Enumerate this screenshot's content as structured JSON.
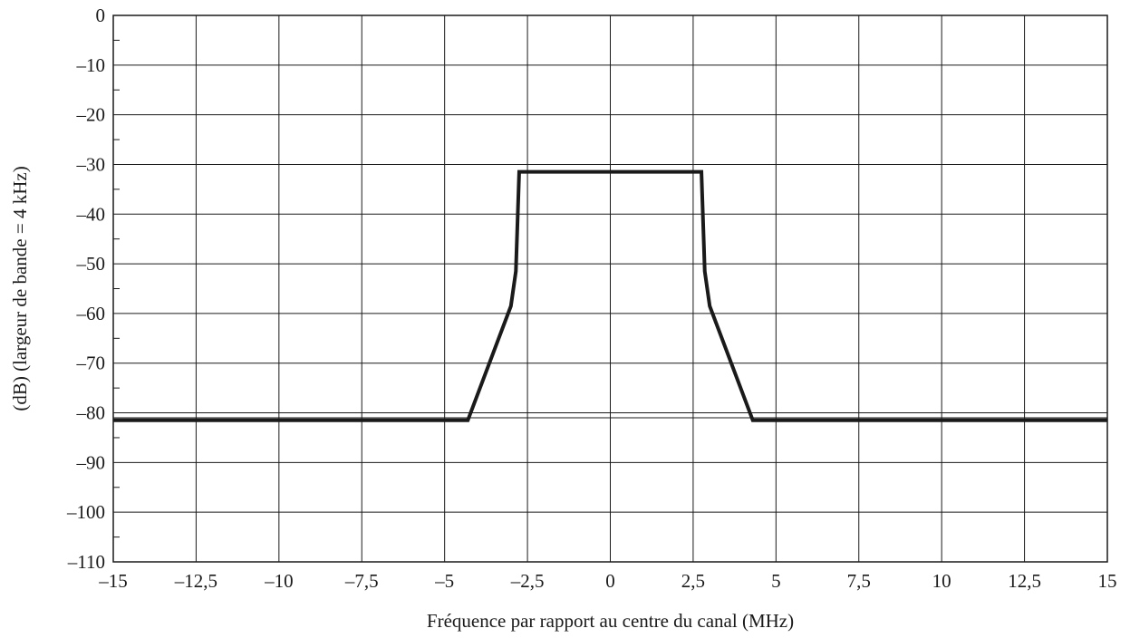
{
  "chart_data": {
    "type": "line",
    "title": "",
    "xlabel": "Fréquence par rapport au centre du canal  (MHz)",
    "ylabel": "(dB) (largeur de bande = 4 kHz)",
    "xlim": [
      -15,
      15
    ],
    "ylim": [
      -110,
      0
    ],
    "grid": true,
    "x_ticks": [
      -15,
      -12.5,
      -10,
      -7.5,
      -5,
      -2.5,
      0,
      2.5,
      5,
      7.5,
      10,
      12.5,
      15
    ],
    "x_tick_labels": [
      "–15",
      "–12,5",
      "–10",
      "–7,5",
      "–5",
      "–2,5",
      "0",
      "2,5",
      "5",
      "7,5",
      "10",
      "12,5",
      "15"
    ],
    "y_ticks": [
      0,
      -10,
      -20,
      -30,
      -40,
      -50,
      -60,
      -70,
      -80,
      -90,
      -100,
      -110
    ],
    "y_tick_labels": [
      "0",
      "–10",
      "–20",
      "–30",
      "–40",
      "–50",
      "–60",
      "–70",
      "–80",
      "–90",
      "–100",
      "–110"
    ],
    "y_minor_step": 5,
    "extra_hlines": [
      -81
    ],
    "series": [
      {
        "color": "#1a1a1a",
        "x": [
          -15,
          -4.3,
          -3,
          -2.85,
          -2.75,
          2.75,
          2.85,
          3,
          4.3,
          15
        ],
        "y": [
          -81.5,
          -81.5,
          -58.5,
          -51.5,
          -31.5,
          -31.5,
          -51.5,
          -58.5,
          -81.5,
          -81.5
        ]
      }
    ]
  }
}
